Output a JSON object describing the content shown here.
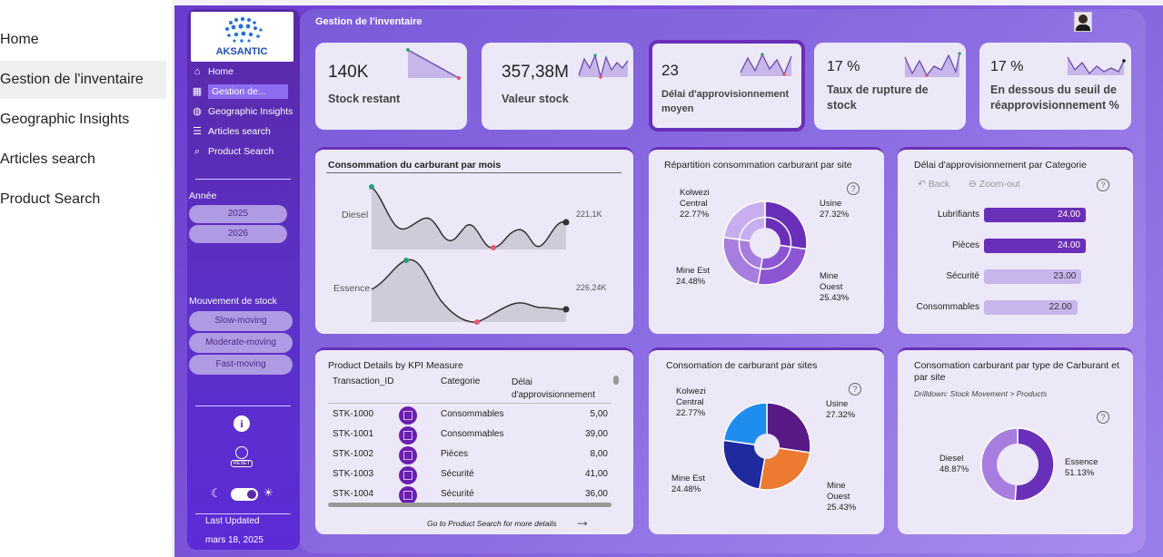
{
  "outer_nav": [
    "Home",
    "Gestion de l'inventaire",
    "Geographic Insights",
    "Articles search",
    "Product Search"
  ],
  "outer_active": 1,
  "page_title": "Gestion de l'inventaire",
  "logo": {
    "text": "AKSANTIC"
  },
  "side_nav": [
    {
      "label": "Home",
      "icon": "home-icon"
    },
    {
      "label": "Gestion de...",
      "icon": "inventory-icon"
    },
    {
      "label": "Geographic Insights",
      "icon": "globe-icon"
    },
    {
      "label": "Articles search",
      "icon": "list-icon"
    },
    {
      "label": "Product Search",
      "icon": "search-icon"
    }
  ],
  "year_filter": {
    "label": "Année",
    "options": [
      "2025",
      "2026"
    ]
  },
  "stock_filter": {
    "label": "Mouvement de stock",
    "options": [
      "Slow-moving",
      "Moderate-moving",
      "Fast-moving"
    ]
  },
  "reset_label": "RESET",
  "last_updated": {
    "label": "Last Updated",
    "value": "mars 18, 2025"
  },
  "kpis": [
    {
      "value": "140K",
      "label": "Stock restant"
    },
    {
      "value": "357,38M",
      "label": "Valeur stock"
    },
    {
      "value": "23",
      "label": "Délai d'approvisionnement moyen"
    },
    {
      "value": "17 %",
      "label": "Taux de rupture de stock"
    },
    {
      "value": "17 %",
      "label": "En dessous du seuil de réapprovisionnement %"
    }
  ],
  "fuel_month": {
    "title": "Consommation du carburant par mois",
    "series": [
      {
        "name": "Diesel",
        "end_label": "221,1K"
      },
      {
        "name": "Essence",
        "end_label": "226,24K"
      }
    ]
  },
  "site_split": {
    "title": "Répartition consommation carburant par site",
    "slices": [
      {
        "name": "Usine",
        "pct": "27.32%",
        "value": 27.32,
        "color": "#6a2fb8"
      },
      {
        "name": "Mine Ouest",
        "pct": "25.43%",
        "value": 25.43,
        "color": "#8c55d4"
      },
      {
        "name": "Mine Est",
        "pct": "24.48%",
        "value": 24.48,
        "color": "#a77ddf"
      },
      {
        "name": "Kolwezi Central",
        "pct": "22.77%",
        "value": 22.77,
        "color": "#c9aeef"
      }
    ]
  },
  "category_lead": {
    "title": "Délai d'approvisionnement par Categorie",
    "back_label": "Back",
    "zoom_label": "Zoom-out",
    "bars": [
      {
        "name": "Lubrifiants",
        "value": 24.0,
        "label": "24.00",
        "color": "#6a2fb8"
      },
      {
        "name": "Pièces",
        "value": 24.0,
        "label": "24.00",
        "color": "#6a2fb8"
      },
      {
        "name": "Sécurité",
        "value": 23.0,
        "label": "23.00",
        "color": "#c7b6ec"
      },
      {
        "name": "Consommables",
        "value": 22.0,
        "label": "22.00",
        "color": "#c7b6ec"
      }
    ]
  },
  "product_table": {
    "title": "Product Details by KPI Measure",
    "columns": [
      "Transaction_ID",
      "Categorie",
      "Délai d'approvisionnement"
    ],
    "rows": [
      {
        "id": "STK-1000",
        "cat": "Consommables",
        "delay": "5,00"
      },
      {
        "id": "STK-1001",
        "cat": "Consommables",
        "delay": "39,00"
      },
      {
        "id": "STK-1002",
        "cat": "Pièces",
        "delay": "8,00"
      },
      {
        "id": "STK-1003",
        "cat": "Sécurité",
        "delay": "41,00"
      },
      {
        "id": "STK-1004",
        "cat": "Sécurité",
        "delay": "36,00"
      }
    ],
    "footer": "Go to Product Search for more details"
  },
  "site_pie": {
    "title": "Consomation de carburant par sites",
    "slices": [
      {
        "name": "Usine",
        "pct": "27.32%",
        "value": 27.32,
        "color": "#5a1a86"
      },
      {
        "name": "Mine Ouest",
        "pct": "25.43%",
        "value": 25.43,
        "color": "#ec7a30"
      },
      {
        "name": "Mine Est",
        "pct": "24.48%",
        "value": 24.48,
        "color": "#1e2a9e"
      },
      {
        "name": "Kolwezi Central",
        "pct": "22.77%",
        "value": 22.77,
        "color": "#1f8df0"
      }
    ]
  },
  "fuel_type": {
    "title": "Consomation carburant par type de Carburant et par site",
    "drill": "Drilldown: Stock Movement > Products",
    "slices": [
      {
        "name": "Essence",
        "pct": "51.13%",
        "value": 51.13,
        "color": "#6a2fb8"
      },
      {
        "name": "Diesel",
        "pct": "48.87%",
        "value": 48.87,
        "color": "#a77ddf"
      }
    ]
  }
}
